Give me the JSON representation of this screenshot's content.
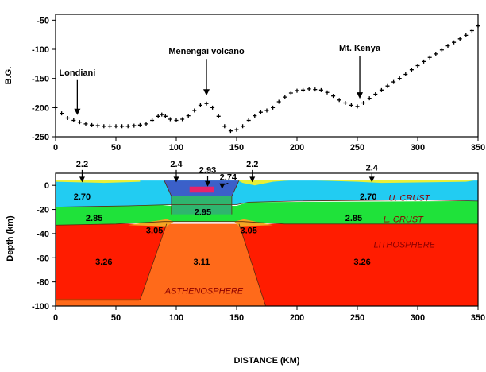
{
  "chart_data": [
    {
      "type": "scatter",
      "ylabel": "B.G.",
      "xlim": [
        0,
        350
      ],
      "ylim": [
        -250,
        -40
      ],
      "x_ticks": [
        "0",
        "50",
        "100",
        "150",
        "200",
        "250",
        "300",
        "350"
      ],
      "y_ticks": [
        "-50",
        "-100",
        "-150",
        "-200",
        "-250"
      ],
      "series": [
        {
          "x": [
            0,
            5,
            10,
            15,
            20,
            25,
            30,
            35,
            40,
            45,
            50,
            55,
            60,
            65,
            70,
            75,
            80,
            85,
            88,
            91,
            95,
            100,
            105,
            110,
            115,
            120,
            125,
            130,
            135,
            140,
            145,
            150,
            155,
            160,
            165,
            170,
            175,
            180,
            185,
            190,
            195,
            200,
            205,
            210,
            215,
            220,
            225,
            230,
            235,
            240,
            245,
            250,
            255,
            260,
            265,
            270,
            275,
            280,
            285,
            290,
            295,
            300,
            305,
            310,
            315,
            320,
            325,
            330,
            335,
            340,
            345,
            350
          ],
          "y": [
            -200,
            -210,
            -218,
            -222,
            -225,
            -228,
            -230,
            -231,
            -232,
            -232,
            -232,
            -232,
            -232,
            -231,
            -230,
            -228,
            -222,
            -215,
            -212,
            -215,
            -220,
            -222,
            -220,
            -214,
            -205,
            -196,
            -193,
            -200,
            -215,
            -232,
            -240,
            -238,
            -232,
            -222,
            -214,
            -208,
            -205,
            -200,
            -190,
            -182,
            -175,
            -171,
            -170,
            -168,
            -169,
            -170,
            -174,
            -180,
            -187,
            -192,
            -196,
            -198,
            -192,
            -184,
            -177,
            -170,
            -163,
            -156,
            -150,
            -143,
            -135,
            -128,
            -121,
            -114,
            -108,
            -101,
            -94,
            -88,
            -82,
            -76,
            -68,
            -60
          ]
        }
      ],
      "annotations": [
        {
          "text": "Londiani",
          "x": 18
        },
        {
          "text": "Menengai volcano",
          "x": 125
        },
        {
          "text": "Mt. Kenya",
          "x": 252
        }
      ]
    },
    {
      "type": "area",
      "xlabel": "DISTANCE (KM)",
      "ylabel": "Depth (km)",
      "xlim": [
        0,
        350
      ],
      "ylim": [
        -100,
        10
      ],
      "x_ticks": [
        "0",
        "50",
        "100",
        "150",
        "200",
        "250",
        "300",
        "350"
      ],
      "y_ticks": [
        "0",
        "-20",
        "-40",
        "-60",
        "-80",
        "-100"
      ],
      "densities": [
        {
          "text": "2.2",
          "x": 22,
          "y": 18
        },
        {
          "text": "2.4",
          "x": 100,
          "y": 18
        },
        {
          "text": "2.93",
          "x": 126,
          "y": 13
        },
        {
          "text": "2.74",
          "x": 143,
          "y": 7
        },
        {
          "text": "2.2",
          "x": 163,
          "y": 18
        },
        {
          "text": "2.4",
          "x": 262,
          "y": 15
        },
        {
          "text": "2.70",
          "x": 22,
          "y": -9
        },
        {
          "text": "2.70",
          "x": 259,
          "y": -9
        },
        {
          "text": "2.95",
          "x": 122,
          "y": -22
        },
        {
          "text": "2.85",
          "x": 32,
          "y": -27
        },
        {
          "text": "2.85",
          "x": 247,
          "y": -27
        },
        {
          "text": "3.05",
          "x": 82,
          "y": -37
        },
        {
          "text": "3.05",
          "x": 160,
          "y": -37
        },
        {
          "text": "3.26",
          "x": 40,
          "y": -63
        },
        {
          "text": "3.11",
          "x": 121,
          "y": -63
        },
        {
          "text": "3.26",
          "x": 254,
          "y": -63
        }
      ],
      "layer_labels": [
        {
          "text": "U. CRUST",
          "x": 293,
          "y": -10
        },
        {
          "text": "L. CRUST",
          "x": 288,
          "y": -28
        },
        {
          "text": "LITHOSPHERE",
          "x": 289,
          "y": -49
        },
        {
          "text": "ASTHENOSPHERE",
          "x": 123,
          "y": -87
        }
      ],
      "colors": {
        "upper_crust": "#22ccf2",
        "lower_crust": "#1fe23a",
        "lithosphere": "#ff1c00",
        "asthenosphere": "#ff6a1a",
        "rift_fill": "#3b60c9",
        "rift_lower": "#2fb56e",
        "intrusion": "#e8226a",
        "surface_sediment": "#e8ef38"
      }
    }
  ]
}
